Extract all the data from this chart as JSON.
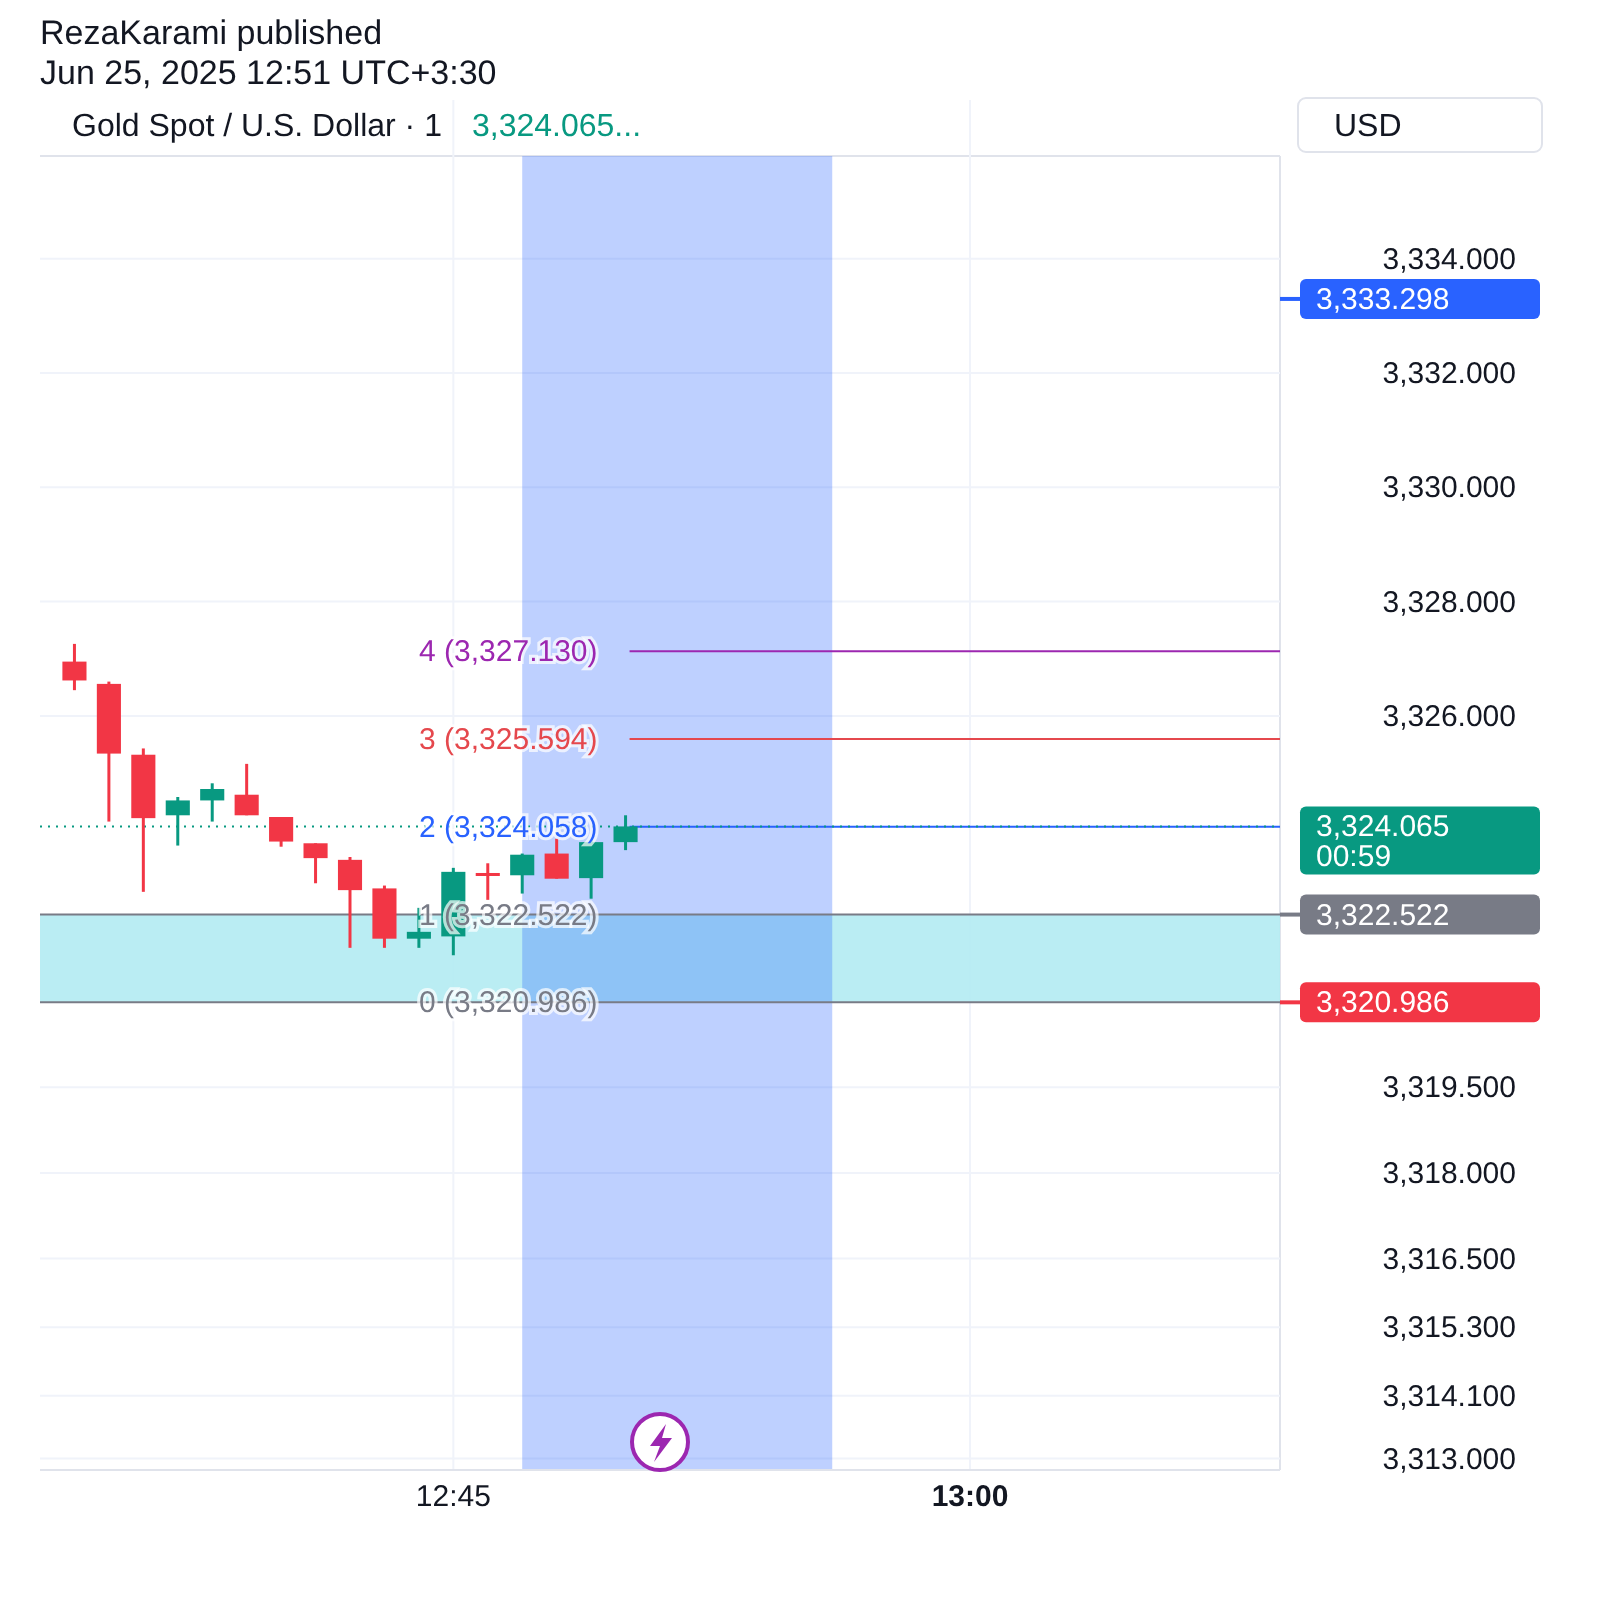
{
  "chart_data": {
    "type": "candlestick",
    "title": "Gold Spot / U.S. Dollar · 1",
    "ylabel": "USD",
    "x": [
      "2025-06-25T12:34",
      "2025-06-25T12:35",
      "2025-06-25T12:36",
      "2025-06-25T12:37",
      "2025-06-25T12:38",
      "2025-06-25T12:39",
      "2025-06-25T12:40",
      "2025-06-25T12:41",
      "2025-06-25T12:42",
      "2025-06-25T12:43",
      "2025-06-25T12:44",
      "2025-06-25T12:45",
      "2025-06-25T12:46",
      "2025-06-25T12:47",
      "2025-06-25T12:48",
      "2025-06-25T12:49",
      "2025-06-25T12:50"
    ],
    "ohlc": [
      [
        3326.95,
        3327.26,
        3326.45,
        3326.62
      ],
      [
        3326.56,
        3326.6,
        3324.15,
        3325.34
      ],
      [
        3325.32,
        3325.43,
        3322.92,
        3324.21
      ],
      [
        3324.26,
        3324.58,
        3323.73,
        3324.52
      ],
      [
        3324.52,
        3324.82,
        3324.15,
        3324.72
      ],
      [
        3324.62,
        3325.16,
        3324.26,
        3324.26
      ],
      [
        3324.23,
        3324.23,
        3323.71,
        3323.8
      ],
      [
        3323.77,
        3323.77,
        3323.07,
        3323.51
      ],
      [
        3323.48,
        3323.53,
        3321.94,
        3322.95
      ],
      [
        3322.98,
        3323.03,
        3321.94,
        3322.1
      ],
      [
        3322.1,
        3322.64,
        3321.94,
        3322.22
      ],
      [
        3322.14,
        3323.34,
        3321.81,
        3323.27
      ],
      [
        3323.25,
        3323.42,
        3322.78,
        3323.22
      ],
      [
        3323.21,
        3323.59,
        3322.89,
        3323.57
      ],
      [
        3323.59,
        3323.85,
        3323.15,
        3323.15
      ],
      [
        3323.16,
        3323.83,
        3322.8,
        3323.79
      ],
      [
        3323.79,
        3324.26,
        3323.65,
        3324.065
      ]
    ],
    "xlim": [
      "2025-06-25T12:33",
      "2025-06-25T13:09"
    ],
    "xticks": [
      {
        "value": "2025-06-25T12:45",
        "label": "12:45"
      },
      {
        "value": "2025-06-25T13:00",
        "label": "13:00"
      }
    ],
    "ylim": [
      3312.8,
      3335.8
    ],
    "yticks": [
      {
        "value": 3334,
        "label": "3,334.000"
      },
      {
        "value": 3332,
        "label": "3,332.000"
      },
      {
        "value": 3330,
        "label": "3,330.000"
      },
      {
        "value": 3328,
        "label": "3,328.000"
      },
      {
        "value": 3326,
        "label": "3,326.000"
      },
      {
        "value": 3319.5,
        "label": "3,319.500"
      },
      {
        "value": 3318,
        "label": "3,318.000"
      },
      {
        "value": 3316.5,
        "label": "3,316.500"
      },
      {
        "value": 3315.3,
        "label": "3,315.300"
      },
      {
        "value": 3314.1,
        "label": "3,314.100"
      },
      {
        "value": 3313,
        "label": "3,313.000"
      }
    ],
    "grid": true,
    "bands": [
      {
        "axis": "y",
        "from": 3320.986,
        "to": 3322.522,
        "color": "#b2ebf2"
      },
      {
        "axis": "x",
        "from": "2025-06-25T12:47",
        "to": "2025-06-25T12:56",
        "color": "#2962ff"
      }
    ],
    "ref_lines": [
      {
        "axis": "y",
        "value": 3327.13,
        "label": "4 (3,327.130)",
        "color": "#9c27b0"
      },
      {
        "axis": "y",
        "value": 3325.594,
        "label": "3 (3,325.594)",
        "color": "#e5484d"
      },
      {
        "axis": "y",
        "value": 3324.058,
        "label": "2 (3,324.058)",
        "color": "#2962ff"
      },
      {
        "axis": "y",
        "value": 3322.522,
        "label": "1 (3,322.522)",
        "color": "#787b86"
      },
      {
        "axis": "y",
        "value": 3320.986,
        "label": "0 (3,320.986)",
        "color": "#787b86"
      },
      {
        "axis": "y",
        "value": 3324.065,
        "label": "3,324.065",
        "color": "#089981",
        "line_style": "dotted"
      },
      {
        "axis": "y",
        "value": 3333.298,
        "label": "3,333.298",
        "color": "#2962ff",
        "line_style": "solid"
      },
      {
        "axis": "y",
        "value": 3322.522,
        "label": "3,322.522",
        "color": "#787b86",
        "line_style": "solid"
      },
      {
        "axis": "y",
        "value": 3320.986,
        "label": "3,320.986",
        "color": "#f23645",
        "line_style": "solid"
      }
    ],
    "annotations": [
      "RezaKarami published",
      "Jun 25, 2025 12:51 UTC+3:30",
      "3,324.065...",
      "00:59"
    ]
  }
}
